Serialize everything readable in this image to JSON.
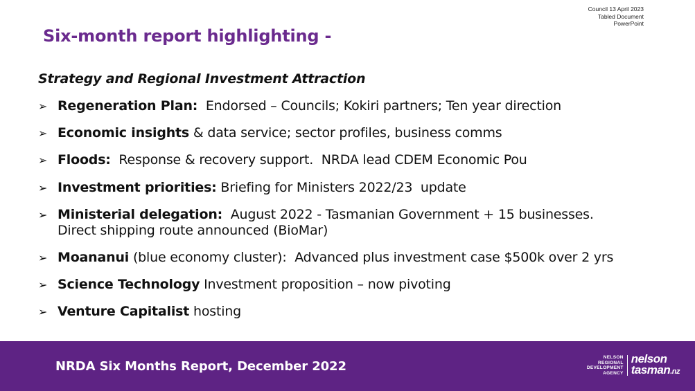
{
  "stamp": {
    "line1": "Council 13 April 2023",
    "line2": "Tabled Document",
    "line3": "PowerPoint"
  },
  "slide": {
    "title": "Six-month report highlighting -",
    "subtitle": "Strategy and Regional Investment Attraction",
    "bullet_symbol": "➢",
    "items": [
      {
        "bold": "Regeneration Plan:",
        "text": "  Endorsed – Councils; Kokiri partners; Ten year direction"
      },
      {
        "bold": "Economic insights",
        "text": " & data service; sector profiles, business comms"
      },
      {
        "bold": "Floods:",
        "text": "  Response & recovery support.  NRDA lead CDEM Economic Pou"
      },
      {
        "bold": "Investment priorities:",
        "text": " Briefing for Ministers 2022/23  update"
      },
      {
        "bold": "Ministerial delegation:",
        "text": "  August 2022 - Tasmanian Government + 15 businesses.",
        "text2": "Direct shipping route announced (BioMar)"
      },
      {
        "bold": "Moananui",
        "text": " (blue economy cluster):  Advanced plus investment case $500k over 2 yrs"
      },
      {
        "bold": "Science Technology",
        "text": " Investment proposition – now pivoting"
      },
      {
        "bold": "Venture Capitalist",
        "text": " hosting"
      }
    ]
  },
  "footer": {
    "title": "NRDA Six Months Report,  December 2022",
    "logo": {
      "line1": "NELSON",
      "line2": "REGIONAL",
      "line3": "DEVELOPMENT",
      "line4": "AGENCY",
      "word1": "nelson",
      "word2": "tasman",
      "suffix": ".nz"
    }
  }
}
